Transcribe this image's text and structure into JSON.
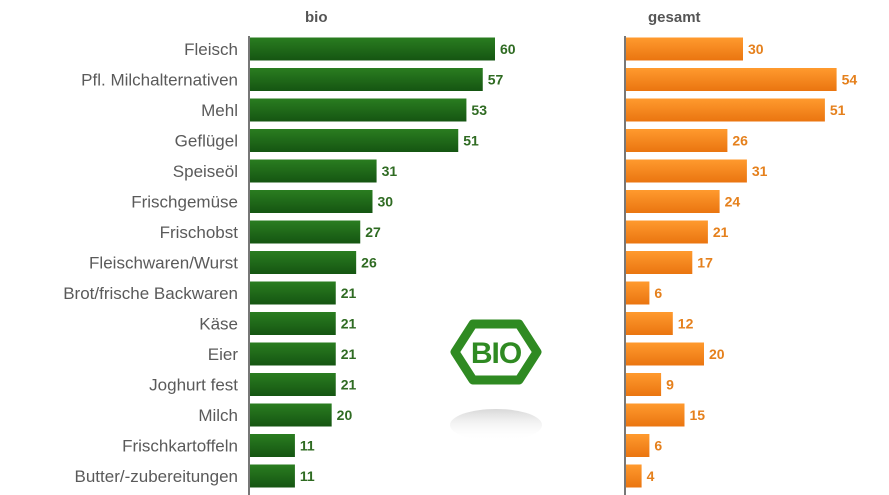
{
  "chart_data": {
    "type": "bar",
    "orientation": "horizontal",
    "categories": [
      "Fleisch",
      "Pfl. Milchalternativen",
      "Mehl",
      "Geflügel",
      "Speiseöl",
      "Frischgemüse",
      "Frischobst",
      "Fleischwaren/Wurst",
      "Brot/frische Backwaren",
      "Käse",
      "Eier",
      "Joghurt fest",
      "Milch",
      "Frischkartoffeln",
      "Butter/-zubereitungen"
    ],
    "series": [
      {
        "name": "bio",
        "color": "#1e6b17",
        "values": [
          60,
          57,
          53,
          51,
          31,
          30,
          27,
          26,
          21,
          21,
          21,
          21,
          20,
          11,
          11
        ]
      },
      {
        "name": "gesamt",
        "color": "#f28a1e",
        "values": [
          30,
          54,
          51,
          26,
          31,
          24,
          21,
          17,
          6,
          12,
          20,
          9,
          15,
          6,
          4
        ]
      }
    ],
    "xlim": [
      0,
      60
    ],
    "grid": false,
    "legend": "panel titles above each bar group",
    "logo_text": "BIO",
    "title": "",
    "xlabel": "",
    "ylabel": ""
  }
}
